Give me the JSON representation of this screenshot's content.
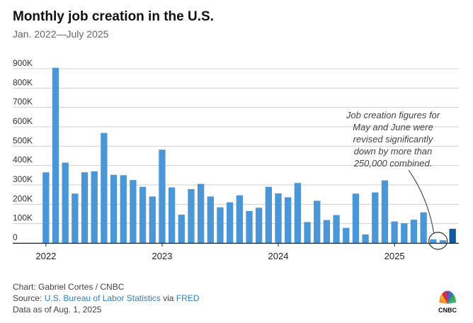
{
  "header": {
    "title": "Monthly job creation in the U.S.",
    "subtitle": "Jan. 2022—July 2025"
  },
  "footer": {
    "chart_credit": "Chart: Gabriel Cortes / CNBC",
    "source_prefix": "Source: ",
    "source_link1": "U.S. Bureau of Labor Statistics",
    "source_via": " via ",
    "source_link2": "FRED",
    "data_note": "Data as of Aug. 1, 2025"
  },
  "logo": {
    "text": "CNBC",
    "icon": "cnbc-peacock-icon"
  },
  "colors": {
    "bar": "#4a96d6",
    "highlight_bar": "#0d5aa0",
    "grid": "#cfcfcf",
    "annotation": "#444444"
  },
  "chart_data": {
    "type": "bar",
    "title": "Monthly job creation in the U.S.",
    "subtitle": "Jan. 2022—July 2025",
    "x": [
      "2022-01",
      "2022-02",
      "2022-03",
      "2022-04",
      "2022-05",
      "2022-06",
      "2022-07",
      "2022-08",
      "2022-09",
      "2022-10",
      "2022-11",
      "2022-12",
      "2023-01",
      "2023-02",
      "2023-03",
      "2023-04",
      "2023-05",
      "2023-06",
      "2023-07",
      "2023-08",
      "2023-09",
      "2023-10",
      "2023-11",
      "2023-12",
      "2024-01",
      "2024-02",
      "2024-03",
      "2024-04",
      "2024-05",
      "2024-06",
      "2024-07",
      "2024-08",
      "2024-09",
      "2024-10",
      "2024-11",
      "2024-12",
      "2025-01",
      "2025-02",
      "2025-03",
      "2025-04",
      "2025-05",
      "2025-06",
      "2025-07"
    ],
    "values": [
      365000,
      905000,
      415000,
      255000,
      365000,
      370000,
      568000,
      352000,
      350000,
      325000,
      290000,
      240000,
      482000,
      287000,
      146000,
      278000,
      305000,
      240000,
      184000,
      210000,
      246000,
      165000,
      182000,
      290000,
      256000,
      236000,
      310000,
      108000,
      218000,
      118000,
      144000,
      78000,
      255000,
      44000,
      261000,
      323000,
      111000,
      102000,
      120000,
      158000,
      19000,
      14000,
      73000
    ],
    "highlight_index": 42,
    "ylim": [
      0,
      900000
    ],
    "yticks": [
      0,
      100000,
      200000,
      300000,
      400000,
      500000,
      600000,
      700000,
      800000,
      900000
    ],
    "ytick_labels": [
      "0",
      "100K",
      "200K",
      "300K",
      "400K",
      "500K",
      "600K",
      "700K",
      "800K",
      "900K"
    ],
    "xtick_labels": [
      "2022",
      "2023",
      "2024",
      "2025"
    ],
    "grid": true,
    "annotation": {
      "lines": [
        "Job creation figures for",
        "May and June were",
        "revised significantly",
        "down by more than",
        "250,000 combined."
      ],
      "target_indices": [
        40,
        41
      ]
    }
  }
}
